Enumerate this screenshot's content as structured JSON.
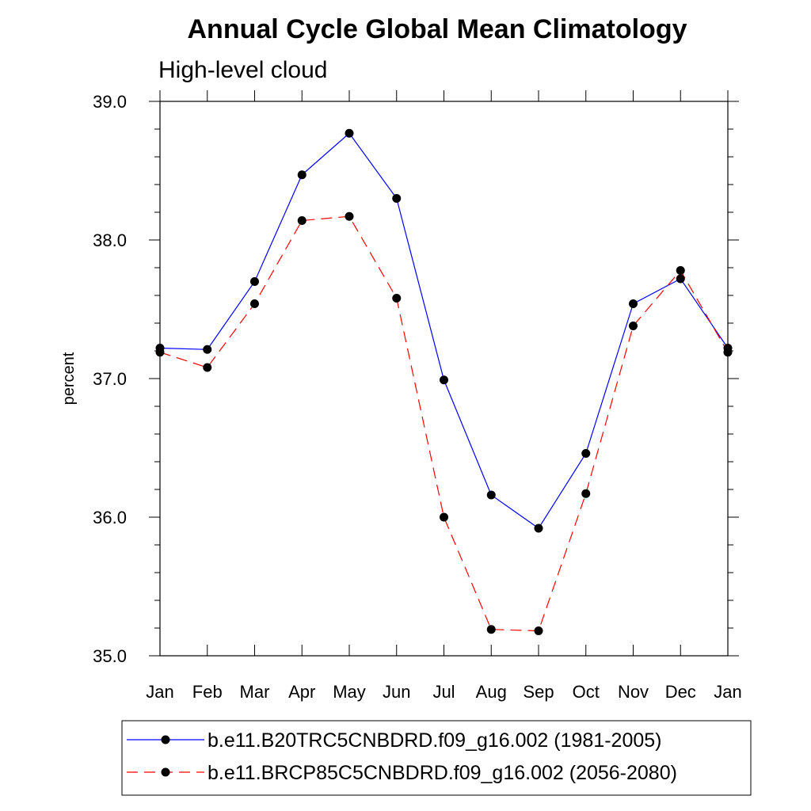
{
  "chart_data": {
    "type": "line",
    "title": "Annual Cycle Global Mean Climatology",
    "subtitle": "High-level cloud",
    "xlabel": "",
    "ylabel": "percent",
    "categories": [
      "Jan",
      "Feb",
      "Mar",
      "Apr",
      "May",
      "Jun",
      "Jul",
      "Aug",
      "Sep",
      "Oct",
      "Nov",
      "Dec",
      "Jan"
    ],
    "ylim": [
      35.0,
      39.0
    ],
    "yticks": [
      "35.0",
      "36.0",
      "37.0",
      "38.0",
      "39.0"
    ],
    "grid": false,
    "legend_position": "bottom",
    "series": [
      {
        "name": "b.e11.B20TRC5CNBDRD.f09_g16.002 (1981-2005)",
        "color": "#0000ff",
        "dash": "solid",
        "values": [
          37.22,
          37.21,
          37.7,
          38.47,
          38.77,
          38.3,
          36.99,
          36.16,
          35.92,
          36.46,
          37.54,
          37.72,
          37.22
        ]
      },
      {
        "name": "b.e11.BRCP85C5CNBDRD.f09_g16.002 (2056-2080)",
        "color": "#ff0000",
        "dash": "dashed",
        "values": [
          37.19,
          37.08,
          37.54,
          38.14,
          38.17,
          37.58,
          36.0,
          35.19,
          35.18,
          36.17,
          37.38,
          37.78,
          37.19
        ]
      }
    ]
  }
}
